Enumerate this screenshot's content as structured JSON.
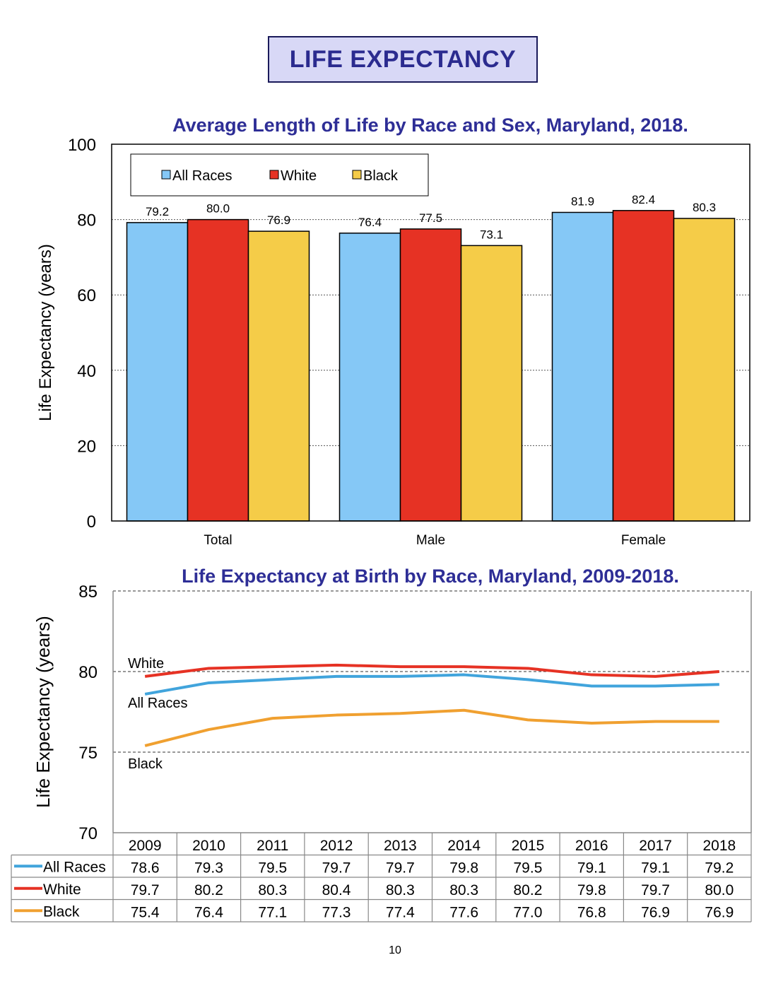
{
  "page": {
    "title": "LIFE EXPECTANCY",
    "page_number": "10"
  },
  "colors": {
    "all_races": "#85c8f6",
    "white": "#e63224",
    "black": "#f5cc48",
    "all_races_line": "#41a4dc",
    "white_line": "#e63224",
    "black_line": "#f0a030",
    "title": "#2e2e96"
  },
  "chart_data": [
    {
      "type": "bar",
      "title": "Average Length of Life by Race and Sex, Maryland, 2018.",
      "ylabel": "Life Expectancy (years)",
      "xlabel": "",
      "ylim": [
        0,
        100
      ],
      "yticks": [
        "0",
        "20",
        "40",
        "60",
        "80",
        "100"
      ],
      "categories": [
        "Total",
        "Male",
        "Female"
      ],
      "legend_position": "top-left",
      "grid": true,
      "series": [
        {
          "name": "All Races",
          "values": [
            79.2,
            76.4,
            81.9
          ],
          "labels": [
            "79.2",
            "76.4",
            "81.9"
          ]
        },
        {
          "name": "White",
          "values": [
            80.0,
            77.5,
            82.4
          ],
          "labels": [
            "80.0",
            "77.5",
            "82.4"
          ]
        },
        {
          "name": "Black",
          "values": [
            76.9,
            73.1,
            80.3
          ],
          "labels": [
            "76.9",
            "73.1",
            "80.3"
          ]
        }
      ]
    },
    {
      "type": "line",
      "title": "Life Expectancy at Birth by Race, Maryland, 2009-2018.",
      "ylabel": "Life Expectancy (years)",
      "ylim": [
        70,
        85
      ],
      "yticks": [
        "70",
        "75",
        "80",
        "85"
      ],
      "x": [
        "2009",
        "2010",
        "2011",
        "2012",
        "2013",
        "2014",
        "2015",
        "2016",
        "2017",
        "2018"
      ],
      "annotations": [
        "White",
        "All Races",
        "Black"
      ],
      "series": [
        {
          "name": "All Races",
          "values": [
            78.6,
            79.3,
            79.5,
            79.7,
            79.7,
            79.8,
            79.5,
            79.1,
            79.1,
            79.2
          ],
          "labels": [
            "78.6",
            "79.3",
            "79.5",
            "79.7",
            "79.7",
            "79.8",
            "79.5",
            "79.1",
            "79.1",
            "79.2"
          ]
        },
        {
          "name": "White",
          "values": [
            79.7,
            80.2,
            80.3,
            80.4,
            80.3,
            80.3,
            80.2,
            79.8,
            79.7,
            80.0
          ],
          "labels": [
            "79.7",
            "80.2",
            "80.3",
            "80.4",
            "80.3",
            "80.3",
            "80.2",
            "79.8",
            "79.7",
            "80.0"
          ]
        },
        {
          "name": "Black",
          "values": [
            75.4,
            76.4,
            77.1,
            77.3,
            77.4,
            77.6,
            77.0,
            76.8,
            76.9,
            76.9
          ],
          "labels": [
            "75.4",
            "76.4",
            "77.1",
            "77.3",
            "77.4",
            "77.6",
            "77.0",
            "76.8",
            "76.9",
            "76.9"
          ]
        }
      ]
    }
  ]
}
